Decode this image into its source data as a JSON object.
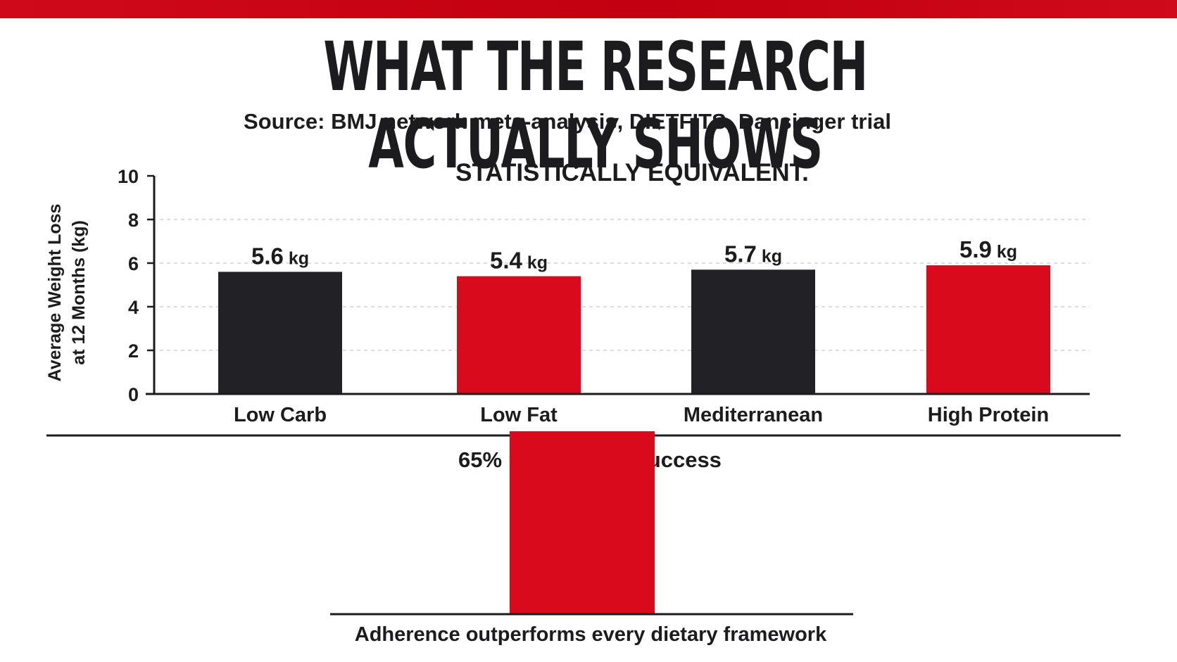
{
  "header": {
    "title": "WHAT THE RESEARCH ACTUALLY SHOWS",
    "subtitle": "Source: BMJ network meta-analysis, DIETFITS, Dansinger trial"
  },
  "colors": {
    "accent_red": "#d90a1c",
    "dark": "#222226",
    "grid": "#c9c9c9"
  },
  "chart_data": [
    {
      "type": "bar",
      "title": "STATISTICALLY EQUIVALENT.",
      "ylabel": "Average Weight Loss at 12 Months (kg)",
      "ylabel_lines": [
        "Average Weight Loss",
        "at 12 Months (kg)"
      ],
      "xlabel": "",
      "ylim": [
        0,
        10
      ],
      "yticks": [
        0,
        2,
        4,
        6,
        8,
        10
      ],
      "grid": true,
      "categories": [
        "Low Carb",
        "Low Fat",
        "Mediterranean",
        "High Protein"
      ],
      "values": [
        5.6,
        5.4,
        5.7,
        5.9
      ],
      "value_labels": [
        "5.6",
        "5.4",
        "5.7",
        "5.9"
      ],
      "unit": "kg",
      "bar_colors": [
        "#222226",
        "#d90a1c",
        "#222226",
        "#d90a1c"
      ]
    },
    {
      "type": "bar",
      "label": "65% predictor of success",
      "value_percent": 65,
      "caption": "Adherence outperforms every dietary framework",
      "bar_color": "#d90a1c"
    }
  ]
}
